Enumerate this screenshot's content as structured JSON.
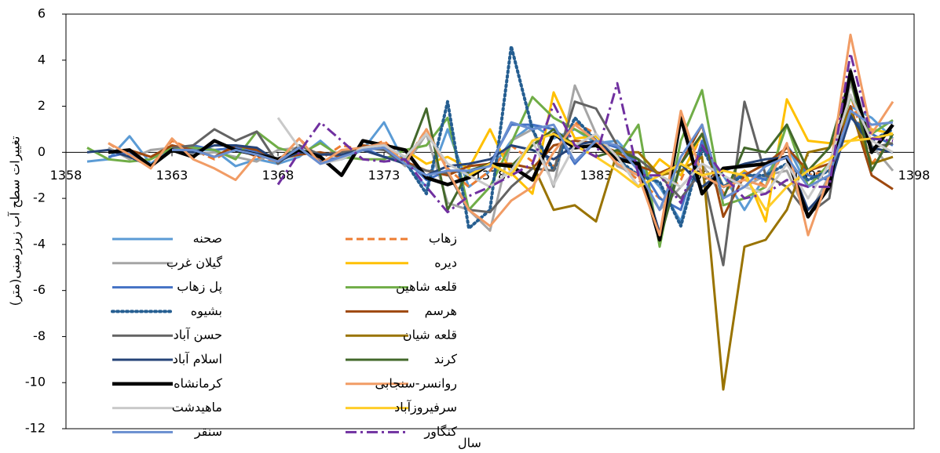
{
  "chart_data": {
    "type": "line",
    "y_label": "تغییرات سطح آب زیرزمینی(متر)",
    "x_label": "سال",
    "x": [
      1359,
      1360,
      1361,
      1362,
      1363,
      1364,
      1365,
      1366,
      1367,
      1368,
      1369,
      1370,
      1371,
      1372,
      1373,
      1374,
      1375,
      1376,
      1377,
      1378,
      1379,
      1380,
      1381,
      1382,
      1383,
      1384,
      1385,
      1386,
      1387,
      1388,
      1389,
      1390,
      1391,
      1392,
      1393,
      1394,
      1395,
      1396,
      1397
    ],
    "xlim": [
      1358,
      1398
    ],
    "xticks": [
      1358,
      1363,
      1368,
      1373,
      1378,
      1383,
      1388,
      1393,
      1398
    ],
    "ylim": [
      -12,
      6
    ],
    "yticks": [
      -12,
      -10,
      -8,
      -6,
      -4,
      -2,
      0,
      2,
      4,
      6
    ],
    "series": [
      {
        "name": "صحنه",
        "color": "#5b9bd5",
        "dash": "solid",
        "width": 3,
        "values": [
          -0.4,
          -0.3,
          0.7,
          -0.5,
          0.2,
          0.1,
          0.1,
          -0.6,
          -0.3,
          -0.5,
          -0.2,
          0.5,
          -0.3,
          0.1,
          1.3,
          -0.5,
          -1.5,
          1.0,
          -1.5,
          -0.8,
          0.5,
          1.2,
          0.6,
          1.0,
          0.4,
          0.5,
          -0.5,
          -1.5,
          -3.0,
          0.2,
          -1.0,
          -2.5,
          -1.0,
          0.3,
          -1.5,
          -0.5,
          2.0,
          1.5,
          0.6
        ]
      },
      {
        "name": "زهاب",
        "color": "#ed7d31",
        "dash": "dash",
        "width": 3,
        "values": [
          null,
          0.4,
          -0.2,
          -0.6,
          0.5,
          0.1,
          -0.3,
          0.2,
          -0.2,
          -0.4,
          0.6,
          -0.3,
          0.3,
          0.1,
          0.5,
          -0.4,
          1.0,
          -0.7,
          -1.5,
          -0.8,
          0.3,
          -0.4,
          -0.6,
          1.3,
          0.8,
          -0.5,
          -1.2,
          -2.0,
          -1.2,
          0.8,
          -1.8,
          -0.8,
          -1.5,
          0.3,
          -1.0,
          -0.8,
          2.5,
          -0.5,
          0.6
        ]
      },
      {
        "name": "گیلان غرب",
        "color": "#a5a5a5",
        "dash": "solid",
        "width": 3,
        "values": [
          null,
          0.2,
          -0.3,
          0.1,
          0.2,
          -0.1,
          0.0,
          -0.2,
          -0.4,
          0.1,
          0.2,
          -0.4,
          -0.2,
          0.3,
          0.2,
          -0.6,
          0.8,
          -2.2,
          -2.5,
          -3.4,
          0.5,
          1.0,
          -1.5,
          2.9,
          0.8,
          -0.6,
          -1.0,
          -2.5,
          -1.5,
          -0.5,
          -2.0,
          -1.5,
          -1.0,
          -0.8,
          -2.8,
          -1.0,
          3.0,
          0.3,
          -0.8
        ]
      },
      {
        "name": "دیره",
        "color": "#ffc000",
        "dash": "solid",
        "width": 3,
        "values": [
          null,
          null,
          null,
          null,
          null,
          null,
          null,
          null,
          null,
          null,
          null,
          null,
          null,
          null,
          0.3,
          0.1,
          -0.5,
          -0.2,
          -0.7,
          1.0,
          -0.9,
          -1.8,
          2.6,
          0.6,
          0.7,
          -0.2,
          -1.5,
          -0.3,
          -1.0,
          0.8,
          -1.5,
          -0.8,
          -3.0,
          2.3,
          0.5,
          0.4,
          0.5,
          1.0,
          0.8
        ]
      },
      {
        "name": "پل زهاب",
        "color": "#4472c4",
        "dash": "solid",
        "width": 3,
        "values": [
          null,
          -0.2,
          0.0,
          -0.6,
          0.1,
          0.3,
          0.1,
          0.2,
          0.0,
          -0.3,
          0.2,
          -0.4,
          -0.2,
          0.2,
          -0.2,
          -0.3,
          -1.2,
          -0.8,
          -0.9,
          -0.5,
          1.2,
          1.2,
          1.0,
          -0.5,
          0.5,
          0.2,
          -0.5,
          -2.0,
          -2.5,
          0.5,
          -1.5,
          -0.9,
          -1.2,
          0.3,
          -1.0,
          -1.2,
          1.5,
          0.8,
          0.3
        ]
      },
      {
        "name": "قلعه شاهین",
        "color": "#70ad47",
        "dash": "solid",
        "width": 3,
        "values": [
          0.2,
          -0.3,
          -0.4,
          -0.3,
          0.2,
          0.2,
          0.1,
          -0.3,
          0.9,
          0.2,
          -0.1,
          0.4,
          -0.2,
          -0.3,
          -0.3,
          0.1,
          0.3,
          1.5,
          -2.5,
          -1.5,
          0.4,
          2.4,
          1.5,
          1.0,
          0.5,
          -0.2,
          1.2,
          -4.1,
          0.5,
          2.7,
          -2.3,
          -2.0,
          -1.5,
          1.2,
          -1.5,
          -0.5,
          2.4,
          0.8,
          1.4
        ]
      },
      {
        "name": "بشیوه",
        "color": "#255e91",
        "dash": "dot",
        "width": 4,
        "values": [
          null,
          null,
          null,
          null,
          null,
          null,
          null,
          null,
          null,
          null,
          null,
          null,
          null,
          null,
          null,
          -0.4,
          -1.8,
          2.2,
          -3.3,
          -2.5,
          4.6,
          1.0,
          -0.8,
          1.5,
          0.5,
          -0.3,
          -1.0,
          -1.3,
          -3.2,
          0.2,
          -1.5,
          -1.0,
          -1.0,
          -0.5,
          -1.2,
          -0.8,
          1.6,
          0.5,
          1.0
        ]
      },
      {
        "name": "هرسم",
        "color": "#9e480e",
        "dash": "solid",
        "width": 3,
        "values": [
          null,
          null,
          0.1,
          -0.2,
          0.3,
          0.1,
          -0.2,
          0.3,
          0.1,
          -0.3,
          -0.1,
          0.0,
          -0.2,
          0.3,
          0.2,
          -0.4,
          -0.8,
          -1.0,
          -0.6,
          -0.5,
          -0.5,
          -0.7,
          0.3,
          0.5,
          0.4,
          0.0,
          -0.6,
          -0.9,
          -0.5,
          1.2,
          -2.8,
          -1.0,
          -0.5,
          0.2,
          -0.8,
          -0.5,
          2.0,
          -1.0,
          -1.6
        ]
      },
      {
        "name": "حسن آباد",
        "color": "#636363",
        "dash": "solid",
        "width": 3,
        "values": [
          null,
          null,
          null,
          null,
          0.2,
          0.3,
          1.0,
          0.5,
          0.9,
          -0.5,
          0.3,
          -0.1,
          0.0,
          0.2,
          0.1,
          -0.5,
          -0.8,
          -0.9,
          -2.5,
          -2.6,
          -1.5,
          -0.7,
          -0.8,
          2.2,
          1.9,
          0.3,
          -0.3,
          -1.0,
          -2.0,
          -0.8,
          -4.9,
          2.2,
          -1.0,
          -1.5,
          -2.7,
          -2.0,
          3.6,
          0.2,
          0.4
        ]
      },
      {
        "name": "قلعه شیان",
        "color": "#997300",
        "dash": "solid",
        "width": 3,
        "values": [
          null,
          null,
          null,
          null,
          null,
          null,
          null,
          null,
          null,
          null,
          null,
          null,
          null,
          null,
          null,
          null,
          null,
          null,
          null,
          null,
          null,
          -0.5,
          -2.5,
          -2.3,
          -3.0,
          0.0,
          0.0,
          -1.0,
          -0.8,
          -0.2,
          -10.3,
          -4.1,
          -3.8,
          -2.5,
          0.0,
          0.2,
          1.8,
          -0.5,
          -0.2
        ]
      },
      {
        "name": "اسلام آباد",
        "color": "#264478",
        "dash": "solid",
        "width": 3,
        "values": [
          0.0,
          0.1,
          -0.2,
          -0.6,
          0.1,
          0.0,
          0.3,
          0.3,
          0.2,
          -0.4,
          0.0,
          -0.1,
          -0.1,
          0.1,
          -0.2,
          -0.5,
          -1.0,
          -0.6,
          -0.5,
          -0.3,
          0.3,
          0.1,
          -0.3,
          0.3,
          0.5,
          -0.2,
          -0.5,
          -3.5,
          -0.5,
          -1.5,
          -0.8,
          -0.5,
          -0.3,
          -0.2,
          -2.5,
          -1.5,
          1.6,
          0.2,
          0.0
        ]
      },
      {
        "name": "کرند",
        "color": "#43682b",
        "dash": "solid",
        "width": 3,
        "values": [
          null,
          null,
          null,
          null,
          null,
          null,
          null,
          null,
          null,
          null,
          null,
          null,
          null,
          null,
          null,
          -0.5,
          1.9,
          -2.5,
          -0.8,
          -0.5,
          -0.6,
          0.3,
          1.0,
          0.3,
          -0.2,
          0.1,
          -0.3,
          -3.8,
          -0.5,
          0.8,
          -2.0,
          0.2,
          0.0,
          1.2,
          -0.8,
          0.2,
          3.3,
          -0.8,
          0.8
        ]
      },
      {
        "name": "کرمانشاه",
        "color": "#000000",
        "dash": "solid",
        "width": 4.5,
        "values": [
          null,
          0.0,
          0.1,
          -0.6,
          0.1,
          -0.2,
          0.5,
          0.1,
          -0.1,
          -0.3,
          0.1,
          -0.2,
          -1.0,
          0.5,
          0.3,
          0.1,
          -1.1,
          -1.4,
          -1.1,
          -0.5,
          -0.6,
          -1.2,
          0.8,
          0.2,
          0.3,
          -0.3,
          -0.5,
          -3.8,
          1.5,
          -1.8,
          -0.7,
          -0.6,
          -0.5,
          -0.2,
          -2.8,
          -1.5,
          3.5,
          0.0,
          1.2
        ]
      },
      {
        "name": "روانسر-سنجابی",
        "color": "#f19c65",
        "dash": "solid",
        "width": 3,
        "values": [
          null,
          0.4,
          -0.1,
          -0.7,
          0.6,
          -0.3,
          -0.7,
          -1.2,
          -0.1,
          -0.4,
          0.6,
          -0.5,
          0.1,
          0.2,
          0.4,
          -0.5,
          1.0,
          -0.8,
          -2.5,
          -3.2,
          -2.1,
          -1.5,
          0.0,
          1.2,
          0.5,
          -0.5,
          -1.0,
          -3.6,
          1.8,
          -1.0,
          -1.5,
          -1.2,
          -1.5,
          0.4,
          -3.6,
          -1.0,
          5.1,
          0.8,
          2.2
        ]
      },
      {
        "name": "ماهیدشت",
        "color": "#c9c9c9",
        "dash": "solid",
        "width": 3,
        "values": [
          null,
          null,
          null,
          null,
          null,
          null,
          null,
          null,
          null,
          1.5,
          0.2,
          -0.5,
          -0.3,
          0.2,
          0.3,
          -0.2,
          0.8,
          -0.5,
          -1.0,
          -1.5,
          -0.8,
          0.5,
          -1.4,
          0.3,
          0.8,
          -0.2,
          -1.5,
          -1.0,
          -1.5,
          -0.5,
          -1.0,
          -1.5,
          -1.8,
          -0.5,
          -2.0,
          -0.5,
          2.5,
          0.5,
          0.0
        ]
      },
      {
        "name": "سرفیروزآباد",
        "color": "#ffcd28",
        "dash": "solid",
        "width": 3,
        "values": [
          null,
          null,
          null,
          null,
          null,
          null,
          null,
          null,
          null,
          null,
          null,
          null,
          null,
          null,
          null,
          null,
          null,
          null,
          -1.0,
          -0.5,
          -1.0,
          0.5,
          0.8,
          0.3,
          -0.2,
          -0.8,
          -1.5,
          -1.0,
          -0.5,
          -1.0,
          -0.8,
          -1.0,
          -2.5,
          -1.5,
          -0.8,
          -0.3,
          0.5,
          0.6,
          0.8
        ]
      },
      {
        "name": "سنقر",
        "color": "#698ed0",
        "dash": "solid",
        "width": 3,
        "values": [
          null,
          null,
          null,
          null,
          0.1,
          0.1,
          -0.2,
          0.1,
          -0.1,
          -0.4,
          0.2,
          -0.5,
          -0.2,
          0.1,
          0.2,
          -0.5,
          -1.0,
          -0.8,
          -0.8,
          -0.6,
          1.3,
          1.0,
          1.2,
          -0.4,
          0.5,
          0.3,
          -0.8,
          -2.5,
          -0.2,
          1.2,
          -2.0,
          -1.5,
          -0.6,
          -0.2,
          -1.5,
          -1.0,
          1.8,
          1.2,
          1.3
        ]
      },
      {
        "name": "کنگاور",
        "color": "#7030a0",
        "dash": "dashdot",
        "width": 3,
        "values": [
          null,
          null,
          null,
          null,
          null,
          null,
          null,
          null,
          null,
          -1.4,
          0.0,
          1.3,
          0.5,
          -0.3,
          -0.4,
          -0.3,
          -1.5,
          -2.6,
          -1.9,
          -1.5,
          -1.0,
          -0.5,
          2.1,
          0.3,
          -0.2,
          3.0,
          -1.0,
          -1.0,
          -2.2,
          0.3,
          -1.0,
          -2.0,
          -1.8,
          -1.2,
          -1.5,
          -1.5,
          4.3,
          0.6,
          0.5
        ]
      }
    ]
  }
}
